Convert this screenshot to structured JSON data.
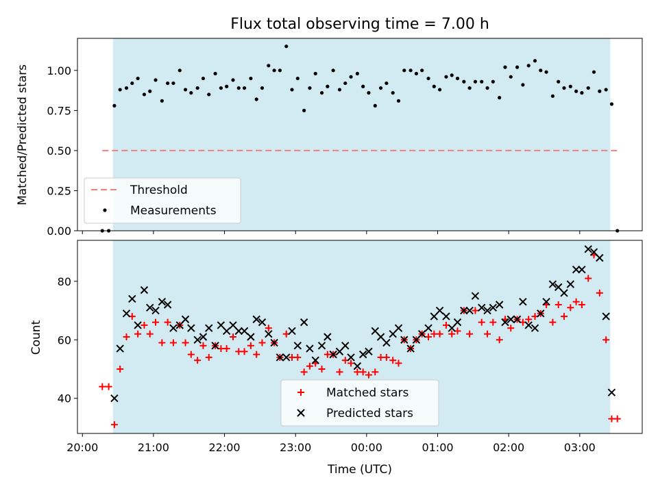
{
  "chart_data": [
    {
      "type": "scatter",
      "title": "Flux total observing time = 7.00 h",
      "xlabel": "",
      "ylabel": "Matched/Predicted stars",
      "ylim": [
        0.0,
        1.2
      ],
      "yticks": [
        "0.00",
        "0.25",
        "0.50",
        "0.75",
        "1.00"
      ],
      "xticks": [
        "20:00",
        "21:00",
        "22:00",
        "23:00",
        "00:00",
        "01:00",
        "02:00",
        "03:00"
      ],
      "x_range_hours": [
        19.93,
        27.88
      ],
      "shaded_span_hours": [
        20.43,
        27.43
      ],
      "shade_color": "#add8e6",
      "legend_position": "lower-left",
      "threshold": {
        "name": "Threshold",
        "value": 0.5,
        "x_start": 20.28,
        "x_end": 27.53,
        "color": "#f08080",
        "style": "dashed"
      },
      "series": [
        {
          "name": "Measurements",
          "marker": "dot",
          "color": "#000000",
          "x": [
            20.28,
            20.37,
            20.45,
            20.53,
            20.62,
            20.7,
            20.78,
            20.87,
            20.95,
            21.03,
            21.12,
            21.2,
            21.28,
            21.37,
            21.45,
            21.53,
            21.62,
            21.7,
            21.78,
            21.87,
            21.95,
            22.03,
            22.12,
            22.2,
            22.28,
            22.37,
            22.45,
            22.53,
            22.62,
            22.7,
            22.78,
            22.87,
            22.95,
            23.03,
            23.12,
            23.2,
            23.28,
            23.37,
            23.45,
            23.53,
            23.62,
            23.7,
            23.78,
            23.87,
            23.95,
            24.03,
            24.12,
            24.2,
            24.28,
            24.37,
            24.45,
            24.53,
            24.62,
            24.7,
            24.78,
            24.87,
            24.95,
            25.03,
            25.12,
            25.2,
            25.28,
            25.37,
            25.45,
            25.53,
            25.62,
            25.7,
            25.78,
            25.87,
            25.95,
            26.03,
            26.12,
            26.2,
            26.28,
            26.37,
            26.45,
            26.53,
            26.62,
            26.7,
            26.78,
            26.87,
            26.95,
            27.03,
            27.12,
            27.2,
            27.28,
            27.37,
            27.45,
            27.53
          ],
          "y": [
            0.0,
            0.0,
            0.78,
            0.88,
            0.89,
            0.92,
            0.95,
            0.85,
            0.87,
            0.94,
            0.81,
            0.92,
            0.92,
            1.0,
            0.88,
            0.86,
            0.89,
            0.95,
            0.85,
            0.98,
            0.89,
            0.9,
            0.94,
            0.89,
            0.89,
            0.95,
            0.82,
            0.89,
            1.03,
            1.0,
            1.0,
            1.15,
            0.88,
            0.95,
            0.75,
            0.89,
            0.98,
            0.86,
            0.9,
            1.0,
            0.88,
            0.92,
            0.96,
            0.98,
            0.9,
            0.86,
            0.78,
            0.89,
            0.92,
            0.86,
            0.81,
            1.0,
            1.0,
            0.98,
            1.0,
            0.95,
            0.9,
            0.88,
            0.96,
            0.97,
            0.95,
            0.93,
            0.89,
            0.93,
            0.93,
            0.89,
            0.93,
            0.83,
            1.02,
            0.96,
            1.02,
            0.91,
            1.03,
            1.06,
            1.0,
            0.99,
            0.84,
            0.93,
            0.89,
            0.9,
            0.87,
            0.86,
            0.89,
            0.99,
            0.87,
            0.88,
            0.79,
            0.0
          ]
        }
      ]
    },
    {
      "type": "scatter",
      "title": "",
      "xlabel": "Time (UTC)",
      "ylabel": "Count",
      "ylim": [
        28,
        94
      ],
      "yticks": [
        "40",
        "60",
        "80"
      ],
      "xticks": [
        "20:00",
        "21:00",
        "22:00",
        "23:00",
        "00:00",
        "01:00",
        "02:00",
        "03:00"
      ],
      "x_range_hours": [
        19.93,
        27.88
      ],
      "shaded_span_hours": [
        20.43,
        27.43
      ],
      "shade_color": "#add8e6",
      "legend_position": "lower-center",
      "series": [
        {
          "name": "Matched stars",
          "marker": "plus",
          "color": "#ff0000",
          "x": [
            20.28,
            20.37,
            20.45,
            20.53,
            20.62,
            20.7,
            20.78,
            20.87,
            20.95,
            21.03,
            21.12,
            21.2,
            21.28,
            21.37,
            21.45,
            21.53,
            21.62,
            21.7,
            21.78,
            21.87,
            21.95,
            22.03,
            22.12,
            22.2,
            22.28,
            22.37,
            22.45,
            22.53,
            22.62,
            22.7,
            22.78,
            22.87,
            22.95,
            23.03,
            23.12,
            23.2,
            23.28,
            23.37,
            23.45,
            23.53,
            23.62,
            23.7,
            23.78,
            23.87,
            23.95,
            24.03,
            24.12,
            24.2,
            24.28,
            24.37,
            24.45,
            24.53,
            24.62,
            24.7,
            24.78,
            24.87,
            24.95,
            25.03,
            25.12,
            25.2,
            25.28,
            25.37,
            25.45,
            25.53,
            25.62,
            25.7,
            25.78,
            25.87,
            25.95,
            26.03,
            26.12,
            26.2,
            26.28,
            26.37,
            26.45,
            26.53,
            26.62,
            26.7,
            26.78,
            26.87,
            26.95,
            27.03,
            27.12,
            27.2,
            27.28,
            27.37,
            27.45,
            27.53
          ],
          "y": [
            44,
            44,
            31,
            50,
            61,
            68,
            62,
            65,
            62,
            66,
            59,
            66,
            59,
            65,
            59,
            55,
            53,
            58,
            54,
            58,
            57,
            57,
            61,
            56,
            56,
            58,
            55,
            59,
            64,
            59,
            54,
            62,
            54,
            54,
            49,
            51,
            52,
            50,
            55,
            55,
            49,
            53,
            52,
            49,
            49,
            48,
            49,
            54,
            54,
            53,
            52,
            60,
            57,
            60,
            62,
            61,
            62,
            62,
            65,
            62,
            63,
            70,
            62,
            70,
            66,
            62,
            66,
            60,
            67,
            64,
            67,
            66,
            67,
            68,
            69,
            72,
            66,
            72,
            68,
            71,
            73,
            72,
            81,
            89,
            76,
            60,
            33,
            33
          ]
        },
        {
          "name": "Predicted stars",
          "marker": "x",
          "color": "#000000",
          "x": [
            20.45,
            20.53,
            20.62,
            20.7,
            20.78,
            20.87,
            20.95,
            21.03,
            21.12,
            21.2,
            21.28,
            21.37,
            21.45,
            21.53,
            21.62,
            21.7,
            21.78,
            21.87,
            21.95,
            22.03,
            22.12,
            22.2,
            22.28,
            22.37,
            22.45,
            22.53,
            22.62,
            22.7,
            22.78,
            22.87,
            22.95,
            23.03,
            23.12,
            23.2,
            23.28,
            23.37,
            23.45,
            23.53,
            23.62,
            23.7,
            23.78,
            23.87,
            23.95,
            24.03,
            24.12,
            24.2,
            24.28,
            24.37,
            24.45,
            24.53,
            24.62,
            24.7,
            24.78,
            24.87,
            24.95,
            25.03,
            25.12,
            25.2,
            25.28,
            25.37,
            25.45,
            25.53,
            25.62,
            25.7,
            25.78,
            25.87,
            25.95,
            26.03,
            26.12,
            26.2,
            26.28,
            26.37,
            26.45,
            26.53,
            26.62,
            26.7,
            26.78,
            26.87,
            26.95,
            27.03,
            27.12,
            27.2,
            27.28,
            27.37,
            27.45
          ],
          "y": [
            40,
            57,
            69,
            74,
            65,
            77,
            71,
            70,
            73,
            72,
            64,
            65,
            67,
            64,
            60,
            61,
            64,
            58,
            65,
            63,
            65,
            63,
            63,
            61,
            67,
            66,
            62,
            59,
            54,
            54,
            63,
            58,
            66,
            57,
            53,
            58,
            61,
            55,
            56,
            58,
            54,
            51,
            55,
            56,
            63,
            61,
            59,
            62,
            64,
            60,
            57,
            60,
            62,
            64,
            68,
            70,
            68,
            64,
            66,
            70,
            70,
            75,
            71,
            70,
            71,
            72,
            66,
            67,
            67,
            73,
            65,
            64,
            69,
            73,
            79,
            78,
            76,
            79,
            84,
            84,
            91,
            90,
            88,
            68,
            42
          ]
        }
      ]
    }
  ]
}
